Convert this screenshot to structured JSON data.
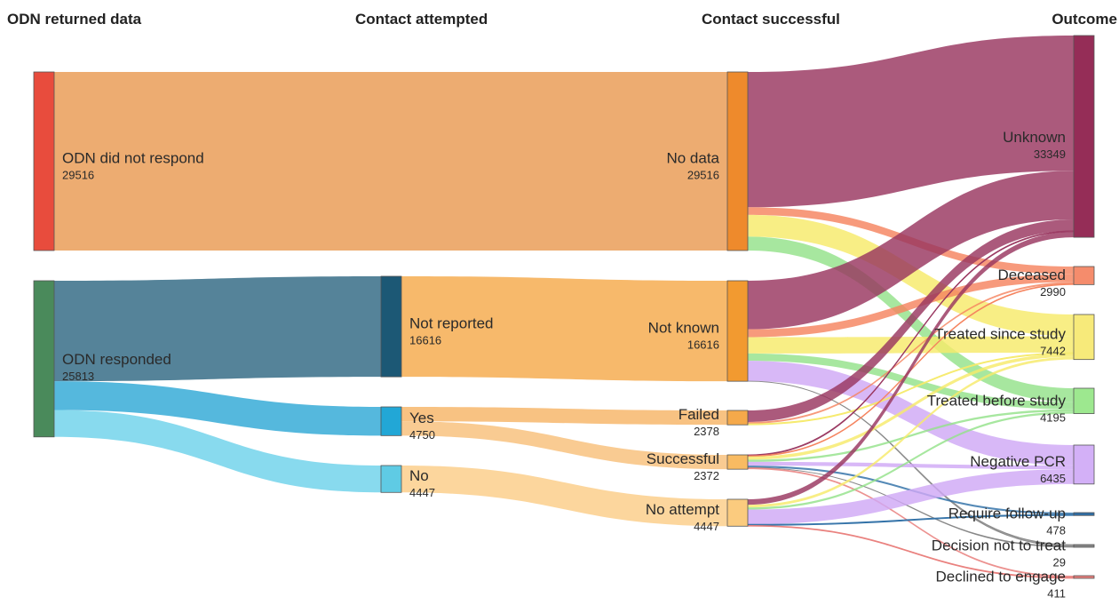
{
  "columns": [
    "ODN returned data",
    "Contact attempted",
    "Contact successful",
    "Outcome"
  ],
  "nodes": [
    {
      "id": "odn_nr",
      "col": 0,
      "label": "ODN did not respond",
      "value": "29516",
      "color": "#e84c3d"
    },
    {
      "id": "odn_r",
      "col": 0,
      "label": "ODN responded",
      "value": "25813",
      "color": "#4a8a5b"
    },
    {
      "id": "notrep",
      "col": 1,
      "label": "Not reported",
      "value": "16616",
      "color": "#1c5875"
    },
    {
      "id": "yes",
      "col": 1,
      "label": "Yes",
      "value": "4750",
      "color": "#22a7d6"
    },
    {
      "id": "no",
      "col": 1,
      "label": "No",
      "value": "4447",
      "color": "#5fcbe4"
    },
    {
      "id": "nodata",
      "col": 2,
      "label": "No data",
      "value": "29516",
      "color": "#ee8a2c"
    },
    {
      "id": "notknown",
      "col": 2,
      "label": "Not known",
      "value": "16616",
      "color": "#f29a30"
    },
    {
      "id": "failed",
      "col": 2,
      "label": "Failed",
      "value": "2378",
      "color": "#f5a94a"
    },
    {
      "id": "success",
      "col": 2,
      "label": "Successful",
      "value": "2372",
      "color": "#f8bb62"
    },
    {
      "id": "noatt",
      "col": 2,
      "label": "No attempt",
      "value": "4447",
      "color": "#fbcb7e"
    },
    {
      "id": "unknown",
      "col": 3,
      "label": "Unknown",
      "value": "33349",
      "color": "#952d57"
    },
    {
      "id": "deceased",
      "col": 3,
      "label": "Deceased",
      "value": "2990",
      "color": "#f58c6c"
    },
    {
      "id": "tsince",
      "col": 3,
      "label": "Treated since study",
      "value": "7442",
      "color": "#f7ea7a"
    },
    {
      "id": "tbefore",
      "col": 3,
      "label": "Treated before study",
      "value": "4195",
      "color": "#9de88f"
    },
    {
      "id": "negpcr",
      "col": 3,
      "label": "Negative PCR",
      "value": "6435",
      "color": "#d3b0f7"
    },
    {
      "id": "reqfu",
      "col": 3,
      "label": "Require follow-up",
      "value": "478",
      "color": "#2e6fa6"
    },
    {
      "id": "decnot",
      "col": 3,
      "label": "Decision not to treat",
      "value": "29",
      "color": "#888888"
    },
    {
      "id": "declined",
      "col": 3,
      "label": "Declined to engage",
      "value": "411",
      "color": "#e97f7c"
    }
  ],
  "links": [
    {
      "source": "odn_nr",
      "target": "nodata",
      "value": 29516,
      "color": "#e99a52"
    },
    {
      "source": "odn_r",
      "target": "notrep",
      "value": 16616,
      "color": "#2f6882"
    },
    {
      "source": "odn_r",
      "target": "yes",
      "value": 4750,
      "color": "#2fa8d6"
    },
    {
      "source": "odn_r",
      "target": "no",
      "value": 4447,
      "color": "#6ed2ea"
    },
    {
      "source": "notrep",
      "target": "notknown",
      "value": 16616,
      "color": "#f5a94a"
    },
    {
      "source": "yes",
      "target": "failed",
      "value": 2378,
      "color": "#f6b466"
    },
    {
      "source": "yes",
      "target": "success",
      "value": 2372,
      "color": "#f8c07a"
    },
    {
      "source": "no",
      "target": "noatt",
      "value": 4447,
      "color": "#fbcd88"
    },
    {
      "source": "nodata",
      "target": "unknown",
      "value": 22360,
      "color": "#99365f"
    },
    {
      "source": "nodata",
      "target": "deceased",
      "value": 1260,
      "color": "#f5845f"
    },
    {
      "source": "nodata",
      "target": "tsince",
      "value": 3600,
      "color": "#f6ea6a"
    },
    {
      "source": "nodata",
      "target": "tbefore",
      "value": 2296,
      "color": "#94e28a"
    },
    {
      "source": "notknown",
      "target": "unknown",
      "value": 8030,
      "color": "#99365f"
    },
    {
      "source": "notknown",
      "target": "deceased",
      "value": 1300,
      "color": "#f5845f"
    },
    {
      "source": "notknown",
      "target": "tsince",
      "value": 2700,
      "color": "#f6ea6a"
    },
    {
      "source": "notknown",
      "target": "tbefore",
      "value": 1200,
      "color": "#94e28a"
    },
    {
      "source": "notknown",
      "target": "negpcr",
      "value": 3366,
      "color": "#cfa8f5"
    },
    {
      "source": "notknown",
      "target": "decnot",
      "value": 20,
      "color": "#888888"
    },
    {
      "source": "failed",
      "target": "unknown",
      "value": 1900,
      "color": "#99365f"
    },
    {
      "source": "failed",
      "target": "deceased",
      "value": 300,
      "color": "#f5845f"
    },
    {
      "source": "failed",
      "target": "tsince",
      "value": 178,
      "color": "#f6ea6a"
    },
    {
      "source": "success",
      "target": "unknown",
      "value": 150,
      "color": "#99365f"
    },
    {
      "source": "success",
      "target": "deceased",
      "value": 130,
      "color": "#f5845f"
    },
    {
      "source": "success",
      "target": "tsince",
      "value": 530,
      "color": "#f6ea6a"
    },
    {
      "source": "success",
      "target": "tbefore",
      "value": 350,
      "color": "#94e28a"
    },
    {
      "source": "success",
      "target": "negpcr",
      "value": 620,
      "color": "#cfa8f5"
    },
    {
      "source": "success",
      "target": "reqfu",
      "value": 310,
      "color": "#2e6fa6"
    },
    {
      "source": "success",
      "target": "decnot",
      "value": 9,
      "color": "#888888"
    },
    {
      "source": "success",
      "target": "declined",
      "value": 273,
      "color": "#e97f7c"
    },
    {
      "source": "noatt",
      "target": "unknown",
      "value": 909,
      "color": "#99365f"
    },
    {
      "source": "noatt",
      "target": "tsince",
      "value": 434,
      "color": "#f6ea6a"
    },
    {
      "source": "noatt",
      "target": "tbefore",
      "value": 349,
      "color": "#94e28a"
    },
    {
      "source": "noatt",
      "target": "negpcr",
      "value": 2449,
      "color": "#cfa8f5"
    },
    {
      "source": "noatt",
      "target": "reqfu",
      "value": 168,
      "color": "#2e6fa6"
    },
    {
      "source": "noatt",
      "target": "declined",
      "value": 138,
      "color": "#e97f7c"
    }
  ]
}
